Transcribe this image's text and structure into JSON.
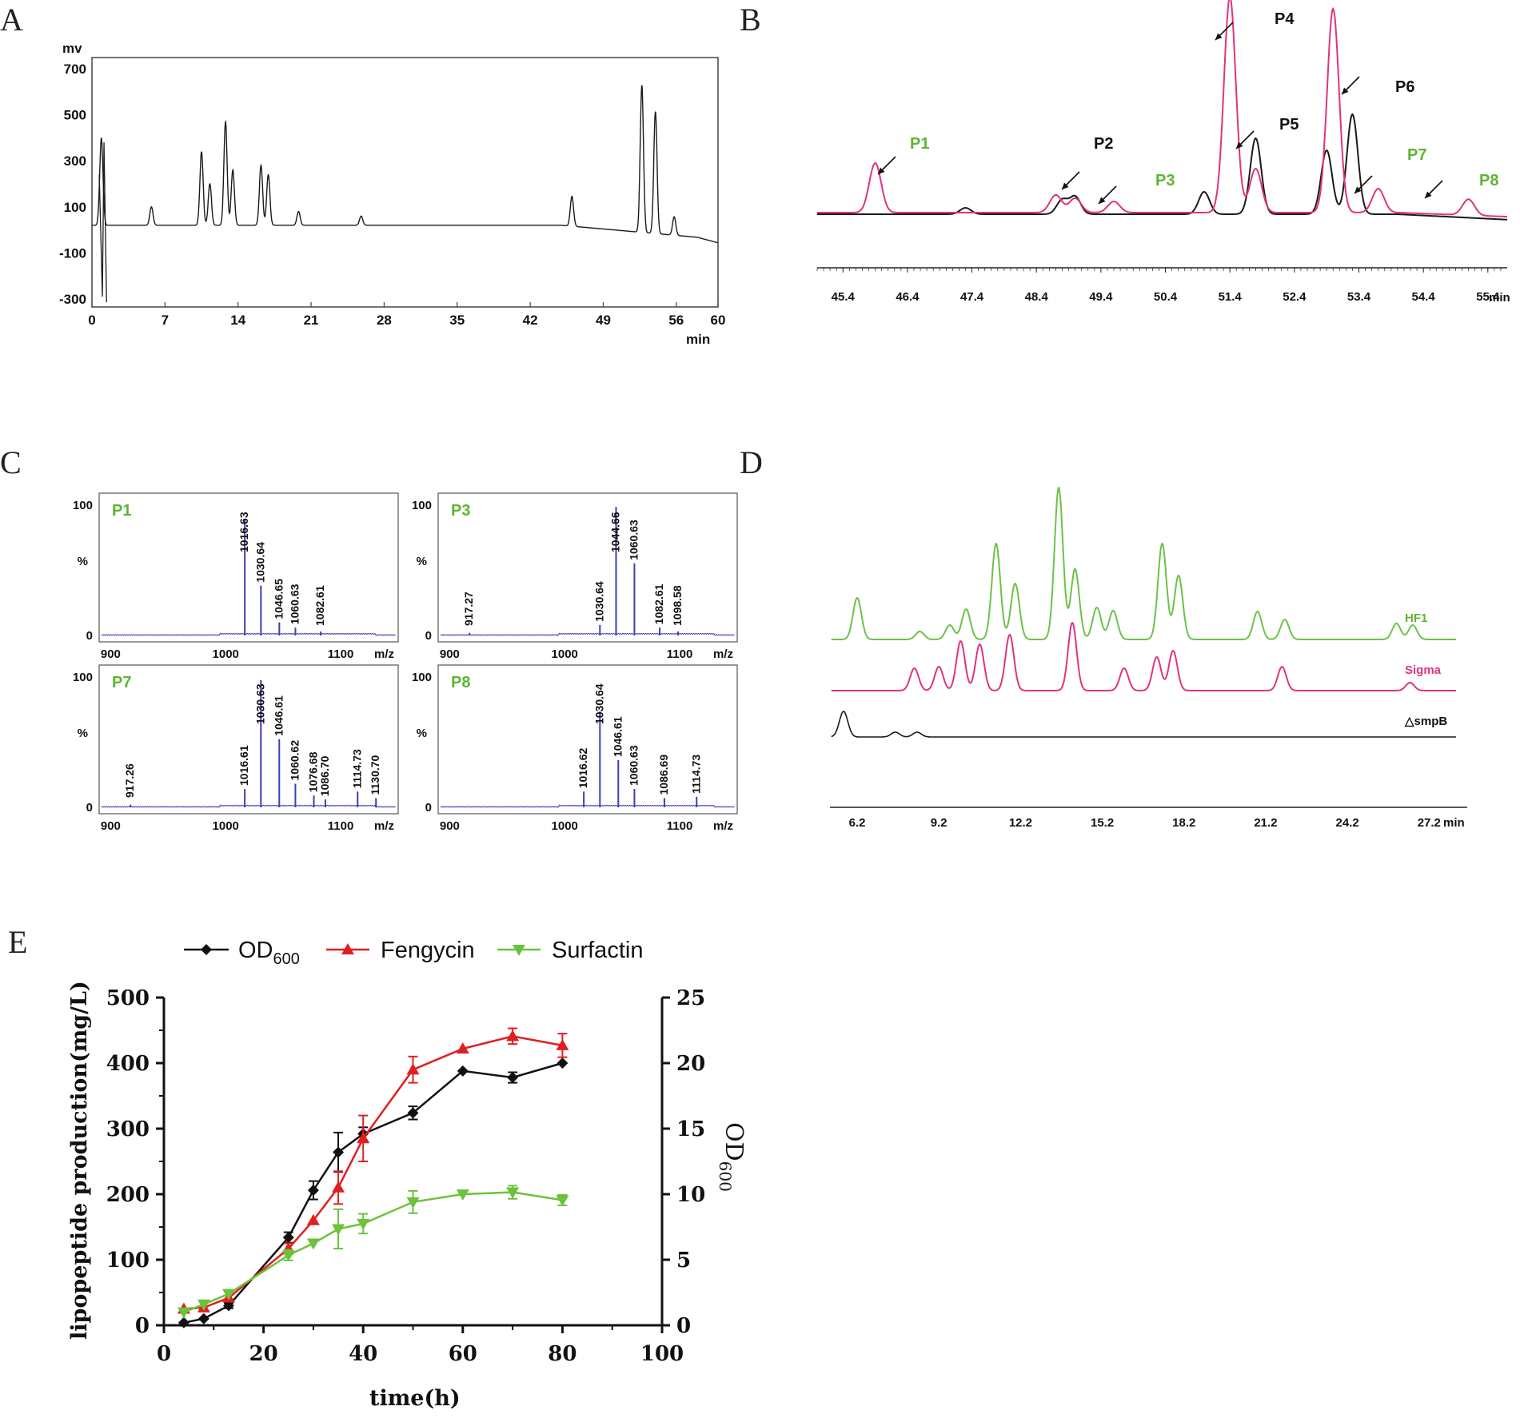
{
  "panels": [
    "A",
    "B",
    "C",
    "D",
    "E"
  ],
  "colors": {
    "black_trace": "#1a1a1a",
    "pink_trace": "#e0337f",
    "green_label": "#5cb531",
    "green_trace": "#6cc24a",
    "ms_blue": "#3b3fb0",
    "od": "#111111",
    "fengycin": "#e02020",
    "surfactin": "#6cc23a"
  },
  "chart_data": [
    {
      "id": "A",
      "type": "line",
      "title": "",
      "ylabel": "mv",
      "xlabel": "min",
      "ylim": [
        -300,
        700
      ],
      "xlim": [
        0,
        60
      ],
      "yticks": [
        "700",
        "500",
        "300",
        "100",
        "-100",
        "-300"
      ],
      "xticks": [
        "0",
        "7",
        "14",
        "21",
        "28",
        "35",
        "42",
        "49",
        "56",
        "60"
      ],
      "baseline_mv": 20,
      "peaks": [
        {
          "t": 0.9,
          "h": 380
        },
        {
          "t": 5.7,
          "h": 80
        },
        {
          "t": 10.5,
          "h": 320
        },
        {
          "t": 11.3,
          "h": 180
        },
        {
          "t": 12.8,
          "h": 450
        },
        {
          "t": 13.5,
          "h": 240
        },
        {
          "t": 16.2,
          "h": 260
        },
        {
          "t": 16.9,
          "h": 220
        },
        {
          "t": 19.8,
          "h": 60
        },
        {
          "t": 25.8,
          "h": 40
        },
        {
          "t": 46.0,
          "h": 130
        },
        {
          "t": 52.7,
          "h": 640
        },
        {
          "t": 54.0,
          "h": 530
        },
        {
          "t": 55.8,
          "h": 80
        }
      ]
    },
    {
      "id": "B",
      "type": "line",
      "xlabel": "min",
      "xticks": [
        "45.4",
        "46.4",
        "47.4",
        "48.4",
        "49.4",
        "50.4",
        "51.4",
        "52.4",
        "53.4",
        "54.4",
        "55.4"
      ],
      "xlim": [
        45.0,
        55.7
      ],
      "series": [
        {
          "name": "black",
          "peaks": [
            {
              "t": 47.3,
              "h": 8
            },
            {
              "t": 48.8,
              "h": 18
            },
            {
              "t": 49.0,
              "h": 22
            },
            {
              "t": 51.0,
              "h": 28
            },
            {
              "t": 51.8,
              "h": 95
            },
            {
              "t": 52.9,
              "h": 80
            },
            {
              "t": 53.3,
              "h": 125
            }
          ]
        },
        {
          "name": "pink",
          "peaks": [
            {
              "t": 45.9,
              "h": 62
            },
            {
              "t": 48.7,
              "h": 22
            },
            {
              "t": 49.0,
              "h": 18
            },
            {
              "t": 49.6,
              "h": 14
            },
            {
              "t": 51.4,
              "h": 270
            },
            {
              "t": 51.8,
              "h": 55
            },
            {
              "t": 53.0,
              "h": 255
            },
            {
              "t": 53.7,
              "h": 30
            },
            {
              "t": 55.1,
              "h": 20
            }
          ]
        }
      ],
      "peak_labels": [
        {
          "text": "P1",
          "t": 45.9,
          "green": true
        },
        {
          "text": "P2",
          "t": 49.0,
          "green": false
        },
        {
          "text": "P3",
          "t": 49.6,
          "green": true
        },
        {
          "text": "P4",
          "t": 51.4,
          "green": false
        },
        {
          "text": "P5",
          "t": 51.8,
          "green": false
        },
        {
          "text": "P6",
          "t": 53.0,
          "green": false
        },
        {
          "text": "P7",
          "t": 53.7,
          "green": true
        },
        {
          "text": "P8",
          "t": 55.1,
          "green": true
        }
      ]
    },
    {
      "id": "C",
      "type": "bar",
      "xlabel": "m/z",
      "ylabel": "%",
      "xlim": [
        890,
        1150
      ],
      "xticks": [
        "900",
        "1000",
        "1100"
      ],
      "yticks": [
        "100",
        "%",
        "0"
      ],
      "spectra": [
        {
          "label": "P1",
          "peaks": [
            {
              "mz": 1016.63,
              "i": 88
            },
            {
              "mz": 1030.64,
              "i": 38
            },
            {
              "mz": 1046.65,
              "i": 10
            },
            {
              "mz": 1060.63,
              "i": 6
            },
            {
              "mz": 1082.61,
              "i": 3
            }
          ],
          "labels": [
            {
              "mz": 1046.65,
              "text": "1046.65"
            },
            {
              "mz": 1016.63,
              "text": "1016.63"
            },
            {
              "mz": 1030.64,
              "text": "1030.64"
            },
            {
              "mz": 1060.63,
              "text": "1060.63"
            },
            {
              "mz": 1082.61,
              "text": "1082.61"
            }
          ]
        },
        {
          "label": "P3",
          "peaks": [
            {
              "mz": 917.27,
              "i": 2
            },
            {
              "mz": 1030.64,
              "i": 8
            },
            {
              "mz": 1044.66,
              "i": 98
            },
            {
              "mz": 1060.63,
              "i": 55
            },
            {
              "mz": 1082.61,
              "i": 6
            },
            {
              "mz": 1098.58,
              "i": 3
            }
          ],
          "labels": [
            {
              "mz": 917.27,
              "text": "917.27"
            },
            {
              "mz": 1030.64,
              "text": "1030.64"
            },
            {
              "mz": 1044.66,
              "text": "1044.66"
            },
            {
              "mz": 1060.63,
              "text": "1060.63"
            },
            {
              "mz": 1082.61,
              "text": "1082.61"
            },
            {
              "mz": 1098.58,
              "text": "1098.58"
            }
          ]
        },
        {
          "label": "P7",
          "peaks": [
            {
              "mz": 917.26,
              "i": 2
            },
            {
              "mz": 1016.61,
              "i": 14
            },
            {
              "mz": 1030.63,
              "i": 97
            },
            {
              "mz": 1046.61,
              "i": 52
            },
            {
              "mz": 1060.62,
              "i": 18
            },
            {
              "mz": 1076.68,
              "i": 9
            },
            {
              "mz": 1086.7,
              "i": 6
            },
            {
              "mz": 1114.73,
              "i": 12
            },
            {
              "mz": 1130.7,
              "i": 7
            }
          ],
          "labels": [
            {
              "mz": 917.26,
              "text": "917.26"
            },
            {
              "mz": 1016.61,
              "text": "1016.61"
            },
            {
              "mz": 1030.63,
              "text": "1030.63"
            },
            {
              "mz": 1046.61,
              "text": "1046.61"
            },
            {
              "mz": 1060.62,
              "text": "1060.62"
            },
            {
              "mz": 1076.68,
              "text": "1076.68"
            },
            {
              "mz": 1086.7,
              "text": "1086.70"
            },
            {
              "mz": 1114.73,
              "text": "1114.73"
            },
            {
              "mz": 1130.7,
              "text": "1130.70"
            }
          ]
        },
        {
          "label": "P8",
          "peaks": [
            {
              "mz": 1016.62,
              "i": 12
            },
            {
              "mz": 1030.64,
              "i": 73
            },
            {
              "mz": 1046.61,
              "i": 36
            },
            {
              "mz": 1060.63,
              "i": 14
            },
            {
              "mz": 1086.69,
              "i": 7
            },
            {
              "mz": 1114.73,
              "i": 8
            }
          ],
          "labels": [
            {
              "mz": 1016.62,
              "text": "1016.62"
            },
            {
              "mz": 1030.64,
              "text": "1030.64"
            },
            {
              "mz": 1046.61,
              "text": "1046.61"
            },
            {
              "mz": 1060.63,
              "text": "1060.63"
            },
            {
              "mz": 1086.69,
              "text": "1086.69"
            },
            {
              "mz": 1114.73,
              "text": "1114.73"
            }
          ]
        }
      ]
    },
    {
      "id": "D",
      "type": "line",
      "xlabel": "min",
      "xlim": [
        5.2,
        28.6
      ],
      "xticks": [
        "6.2",
        "9.2",
        "12.2",
        "15.2",
        "18.2",
        "21.2",
        "24.2",
        "27.2"
      ],
      "series": [
        {
          "name": "HF1",
          "peaks": [
            {
              "t": 6.2,
              "h": 52
            },
            {
              "t": 8.5,
              "h": 10
            },
            {
              "t": 9.6,
              "h": 18
            },
            {
              "t": 10.2,
              "h": 38
            },
            {
              "t": 11.3,
              "h": 120
            },
            {
              "t": 12.0,
              "h": 70
            },
            {
              "t": 13.6,
              "h": 190
            },
            {
              "t": 14.2,
              "h": 88
            },
            {
              "t": 15.0,
              "h": 40
            },
            {
              "t": 15.6,
              "h": 36
            },
            {
              "t": 17.4,
              "h": 120
            },
            {
              "t": 18.0,
              "h": 80
            },
            {
              "t": 20.9,
              "h": 35
            },
            {
              "t": 21.9,
              "h": 25
            },
            {
              "t": 26.0,
              "h": 20
            },
            {
              "t": 26.6,
              "h": 18
            }
          ]
        },
        {
          "name": "Sigma",
          "peaks": [
            {
              "t": 8.3,
              "h": 28
            },
            {
              "t": 9.2,
              "h": 30
            },
            {
              "t": 10.0,
              "h": 62
            },
            {
              "t": 10.7,
              "h": 58
            },
            {
              "t": 11.8,
              "h": 70
            },
            {
              "t": 14.1,
              "h": 85
            },
            {
              "t": 16.0,
              "h": 28
            },
            {
              "t": 17.2,
              "h": 42
            },
            {
              "t": 17.8,
              "h": 50
            },
            {
              "t": 21.8,
              "h": 30
            },
            {
              "t": 26.5,
              "h": 10
            }
          ]
        },
        {
          "name": "△smpB",
          "peaks": [
            {
              "t": 5.7,
              "h": 32
            },
            {
              "t": 7.6,
              "h": 6
            },
            {
              "t": 8.4,
              "h": 6
            }
          ]
        }
      ]
    },
    {
      "id": "E",
      "type": "line",
      "xlabel": "time(h)",
      "ylabel": "lipopeptide production(mg/L)",
      "y2label": "OD600",
      "xlim": [
        0,
        100
      ],
      "ylim": [
        0,
        500
      ],
      "y2lim": [
        0,
        25
      ],
      "xticks": [
        "0",
        "20",
        "40",
        "60",
        "80",
        "100"
      ],
      "yticks": [
        "0",
        "100",
        "200",
        "300",
        "400",
        "500"
      ],
      "y2ticks": [
        "0",
        "5",
        "10",
        "15",
        "20",
        "25"
      ],
      "legend": [
        "OD",
        "Fengycin",
        "Surfactin"
      ],
      "legend_sub": "600",
      "x": [
        4,
        8,
        13,
        25,
        30,
        35,
        40,
        50,
        60,
        70,
        80
      ],
      "series": [
        {
          "name": "OD600",
          "axis": "right",
          "values": [
            0.2,
            0.5,
            1.5,
            6.7,
            10.3,
            13.2,
            14.6,
            16.2,
            19.4,
            18.9,
            20.0
          ],
          "err": [
            0,
            0,
            0.2,
            0.4,
            0.7,
            1.5,
            0.5,
            0.5,
            0,
            0.4,
            0
          ]
        },
        {
          "name": "Fengycin",
          "axis": "left",
          "values": [
            25,
            27,
            42,
            117,
            160,
            210,
            285,
            390,
            422,
            441,
            427
          ],
          "err": [
            0,
            0,
            0,
            8,
            0,
            25,
            35,
            20,
            0,
            12,
            18
          ]
        },
        {
          "name": "Surfactin",
          "axis": "left",
          "values": [
            20,
            32,
            48,
            107,
            125,
            147,
            155,
            188,
            200,
            203,
            191
          ],
          "err": [
            0,
            0,
            0,
            8,
            0,
            30,
            15,
            17,
            0,
            10,
            8
          ]
        }
      ]
    }
  ]
}
